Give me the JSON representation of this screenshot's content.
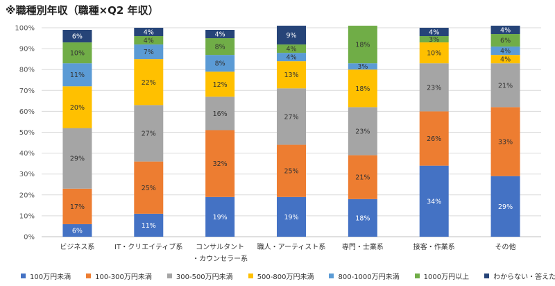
{
  "title": "※職種別年収（職種×Q2 年収）",
  "chart_data": {
    "type": "bar",
    "stacked": true,
    "percent": true,
    "categories": [
      [
        "ビジネス系"
      ],
      [
        "IT・クリエイティブ系"
      ],
      [
        "コンサルタント",
        "・カウンセラー系"
      ],
      [
        "職人・アーティスト系"
      ],
      [
        "専門・士業系"
      ],
      [
        "接客・作業系"
      ],
      [
        "その他"
      ]
    ],
    "ylim": [
      0,
      100
    ],
    "yticks": [
      "0%",
      "10%",
      "20%",
      "30%",
      "40%",
      "50%",
      "60%",
      "70%",
      "80%",
      "90%",
      "100%"
    ],
    "grid": true,
    "legend_position": "bottom",
    "series": [
      {
        "name": "100万円未満",
        "color": "#4472C4",
        "values": [
          6,
          11,
          19,
          19,
          18,
          34,
          29
        ]
      },
      {
        "name": "100-300万円未満",
        "color": "#ED7D31",
        "values": [
          17,
          25,
          32,
          25,
          21,
          26,
          33
        ]
      },
      {
        "name": "300-500万円未満",
        "color": "#A5A5A5",
        "values": [
          29,
          27,
          16,
          27,
          23,
          23,
          21
        ]
      },
      {
        "name": "500-800万円未満",
        "color": "#FFC000",
        "values": [
          20,
          22,
          12,
          13,
          18,
          10,
          4
        ]
      },
      {
        "name": "800-1000万円未満",
        "color": "#5B9BD5",
        "values": [
          11,
          7,
          8,
          4,
          3,
          0,
          4
        ]
      },
      {
        "name": "1000万円以上",
        "color": "#70AD47",
        "values": [
          10,
          4,
          8,
          4,
          18,
          3,
          6
        ]
      },
      {
        "name": "わからない・答えたくない",
        "color": "#264478",
        "values": [
          6,
          4,
          4,
          9,
          0,
          4,
          4
        ]
      }
    ],
    "labels": [
      [
        "6%",
        "11%",
        "19%",
        "19%",
        "18%",
        "34%",
        "29%"
      ],
      [
        "17%",
        "25%",
        "32%",
        "25%",
        "21%",
        "26%",
        "33%"
      ],
      [
        "29%",
        "27%",
        "16%",
        "27%",
        "23%",
        "23%",
        "21%"
      ],
      [
        "20%",
        "22%",
        "12%",
        "13%",
        "18%",
        "10%",
        "4%"
      ],
      [
        "11%",
        "7%",
        "8%",
        "4%",
        "3%",
        "",
        "4%"
      ],
      [
        "10%",
        "4%",
        "8%",
        "4%",
        "18%",
        "3%",
        "6%"
      ],
      [
        "6%",
        "4%",
        "4%",
        "9%",
        "",
        "4%",
        "4%"
      ]
    ]
  }
}
